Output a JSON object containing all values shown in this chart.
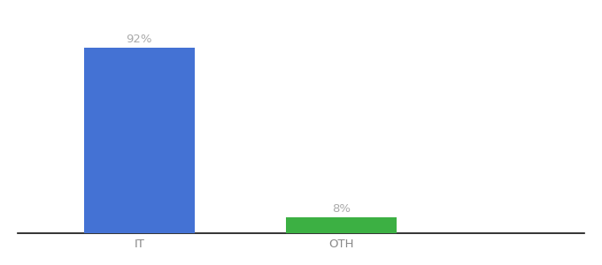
{
  "categories": [
    "IT",
    "OTH"
  ],
  "values": [
    92,
    8
  ],
  "bar_colors": [
    "#4472d4",
    "#3cb043"
  ],
  "value_labels": [
    "92%",
    "8%"
  ],
  "background_color": "#ffffff",
  "text_color": "#aaaaaa",
  "label_fontsize": 9.5,
  "tick_fontsize": 9.5,
  "tick_color": "#888888",
  "ylim": [
    0,
    105
  ],
  "bar_width": 0.55,
  "x_positions": [
    0,
    1
  ],
  "xlim": [
    -0.6,
    2.2
  ]
}
